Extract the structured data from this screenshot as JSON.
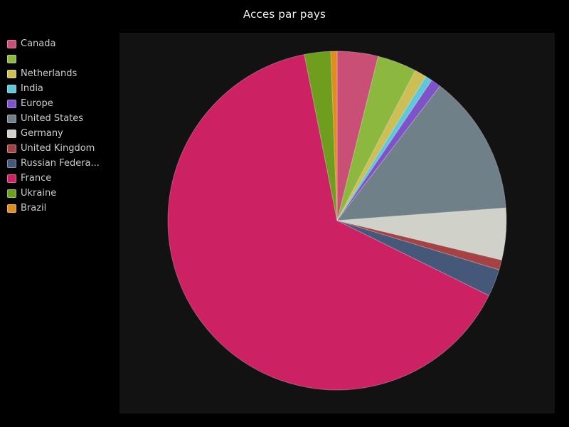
{
  "title": "Acces par pays",
  "colors": {
    "page_background": "#000000",
    "panel_background": "#121212",
    "title_text": "#f2f2f2",
    "legend_text": "#cccccc"
  },
  "chart_data": {
    "type": "pie",
    "title": "Acces par pays",
    "unit": "percent_of_total",
    "start_angle_deg": 0,
    "direction": "clockwise",
    "legend_position": "left",
    "labels_on_slices": false,
    "slices": [
      {
        "label": "Canada",
        "percent": 3.9,
        "color": "#c94f77"
      },
      {
        "label": "",
        "percent": 3.75,
        "color": "#8db83f"
      },
      {
        "label": "Netherlands",
        "percent": 1.15,
        "color": "#cbbf55"
      },
      {
        "label": "India",
        "percent": 0.65,
        "color": "#5ec7d8"
      },
      {
        "label": "Europe",
        "percent": 0.95,
        "color": "#7e53c9"
      },
      {
        "label": "United States",
        "percent": 13.4,
        "color": "#708088"
      },
      {
        "label": "Germany",
        "percent": 4.95,
        "color": "#d0d1c9"
      },
      {
        "label": "United Kingdom",
        "percent": 0.95,
        "color": "#a54243"
      },
      {
        "label": "Russian Federa...",
        "percent": 2.6,
        "color": "#46587a"
      },
      {
        "label": "France",
        "percent": 64.6,
        "color": "#cc2162"
      },
      {
        "label": "Ukraine",
        "percent": 2.5,
        "color": "#6f9d1e"
      },
      {
        "label": "Brazil",
        "percent": 0.6,
        "color": "#df8e1e"
      }
    ]
  }
}
